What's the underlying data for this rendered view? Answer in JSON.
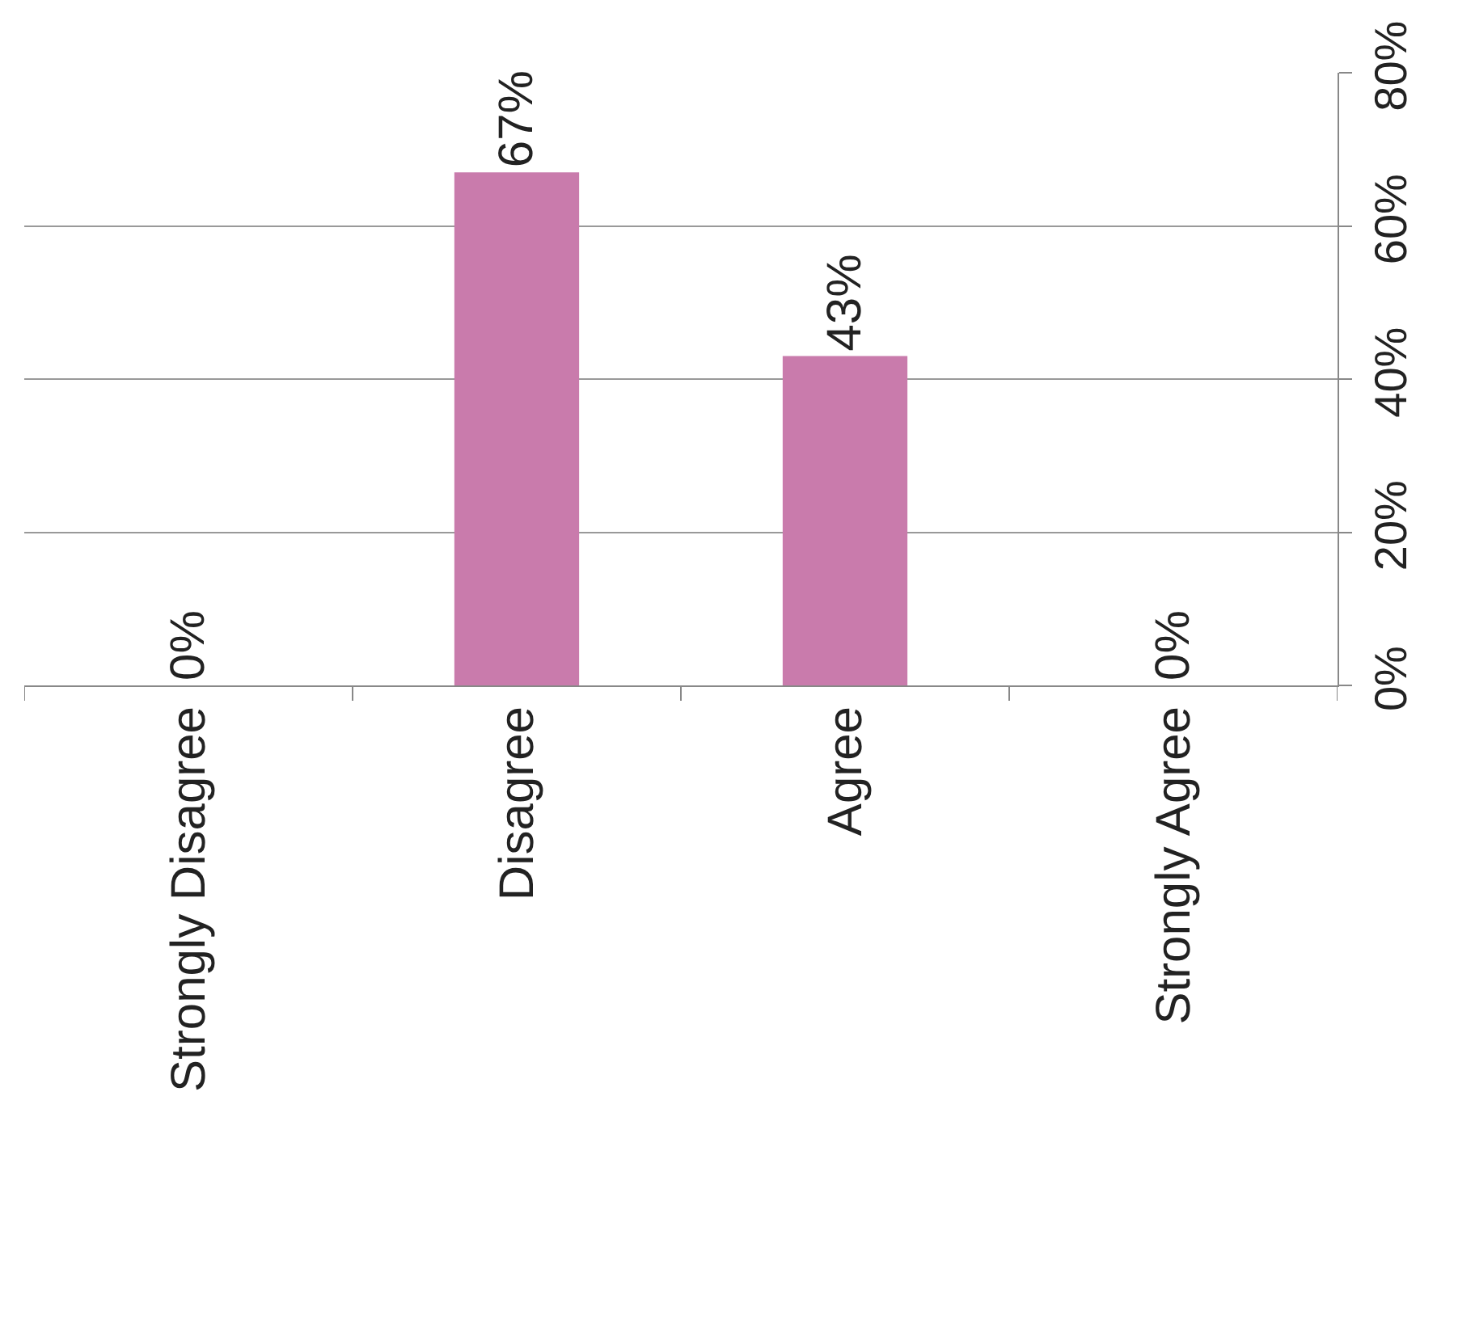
{
  "chart_data": {
    "type": "bar",
    "categories": [
      "Strongly Disagree",
      "Disagree",
      "Agree",
      "Strongly Agree"
    ],
    "values": [
      0,
      67,
      43,
      0
    ],
    "value_labels": [
      "0%",
      "67%",
      "43%",
      "0%"
    ],
    "color": "#c97bac",
    "ylim": [
      0,
      80
    ],
    "yticks": [
      {
        "value": 0,
        "label": "0%"
      },
      {
        "value": 20,
        "label": "20%"
      },
      {
        "value": 40,
        "label": "40%"
      },
      {
        "value": 60,
        "label": "60%"
      },
      {
        "value": 80,
        "label": "80%"
      }
    ],
    "grid": "y"
  }
}
